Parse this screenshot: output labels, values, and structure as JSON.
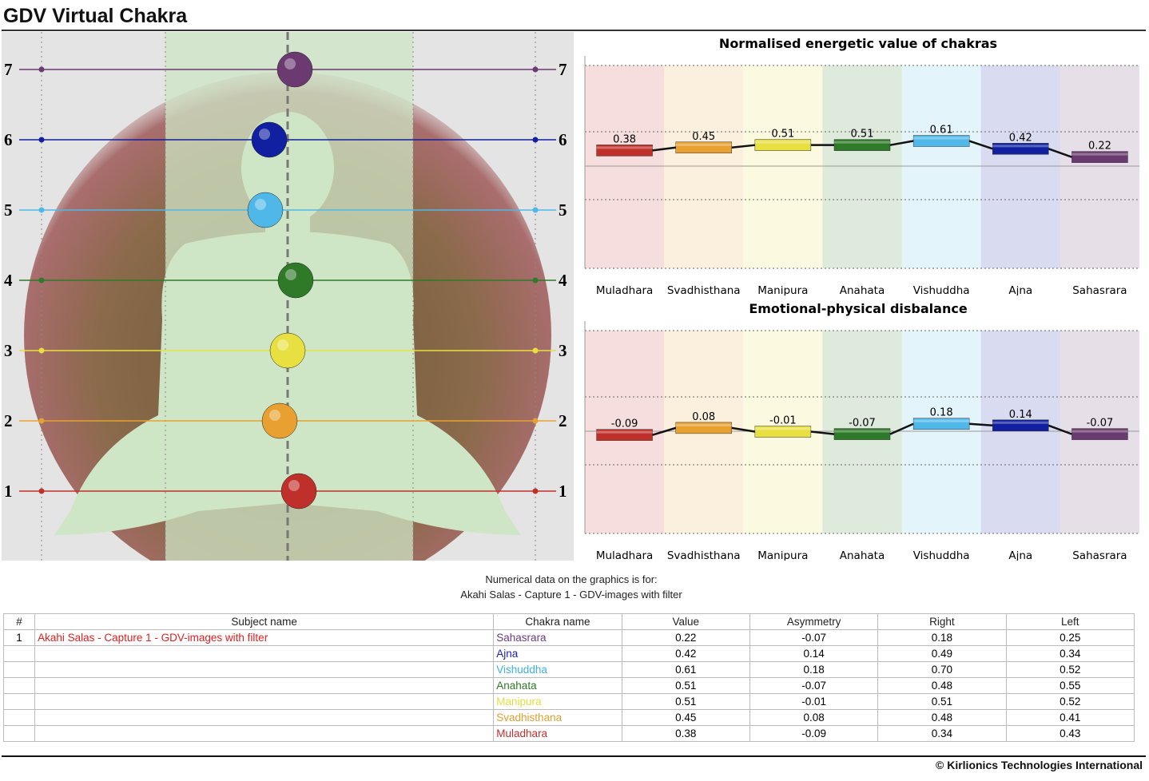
{
  "title": "GDV Virtual Chakra",
  "chakras": [
    {
      "level": 1,
      "name": "Muladhara",
      "color": "#c0302a"
    },
    {
      "level": 2,
      "name": "Svadhisthana",
      "color": "#e8a030"
    },
    {
      "level": 3,
      "name": "Manipura",
      "color": "#e8e040"
    },
    {
      "level": 4,
      "name": "Anahata",
      "color": "#2e7a28"
    },
    {
      "level": 5,
      "name": "Vishuddha",
      "color": "#50b8e8"
    },
    {
      "level": 6,
      "name": "Ajna",
      "color": "#1020a0"
    },
    {
      "level": 7,
      "name": "Sahasrara",
      "color": "#6a3a70"
    }
  ],
  "chart_data": [
    {
      "type": "bar",
      "title": "Normalised energetic value of chakras",
      "categories": [
        "Muladhara",
        "Svadhisthana",
        "Manipura",
        "Anahata",
        "Vishuddha",
        "Ajna",
        "Sahasrara"
      ],
      "values": [
        0.38,
        0.45,
        0.51,
        0.51,
        0.61,
        0.42,
        0.22
      ],
      "labels": [
        "0.38",
        "0.45",
        "0.51",
        "0.51",
        "0.61",
        "0.42",
        "0.22"
      ],
      "ylim": [
        -1.5,
        1.5
      ],
      "grid": true,
      "xlabel": "",
      "ylabel": ""
    },
    {
      "type": "bar",
      "title": "Emotional-physical disbalance",
      "categories": [
        "Muladhara",
        "Svadhisthana",
        "Manipura",
        "Anahata",
        "Vishuddha",
        "Ajna",
        "Sahasrara"
      ],
      "values": [
        -0.09,
        0.08,
        -0.01,
        -0.07,
        0.18,
        0.14,
        -0.07
      ],
      "labels": [
        "-0.09",
        "0.08",
        "-0.01",
        "-0.07",
        "0.18",
        "0.14",
        "-0.07"
      ],
      "ylim": [
        -1.5,
        1.5
      ],
      "grid": true,
      "xlabel": "",
      "ylabel": ""
    }
  ],
  "note": {
    "line1": "Numerical data on the graphics is for:",
    "line2": "Akahi Salas - Capture 1 - GDV-images with filter"
  },
  "table": {
    "headers": [
      "#",
      "Subject name",
      "Chakra name",
      "Value",
      "Asymmetry",
      "Right",
      "Left"
    ],
    "rows": [
      {
        "num": "1",
        "subject": "Akahi Salas - Capture 1 - GDV-images with filter",
        "chakra": "Sahasrara",
        "value": "0.22",
        "asym": "-0.07",
        "right": "0.18",
        "left": "0.25",
        "color": "#6a3a80"
      },
      {
        "num": "",
        "subject": "",
        "chakra": "Ajna",
        "value": "0.42",
        "asym": "0.14",
        "right": "0.49",
        "left": "0.34",
        "color": "#2020b0"
      },
      {
        "num": "",
        "subject": "",
        "chakra": "Vishuddha",
        "value": "0.61",
        "asym": "0.18",
        "right": "0.70",
        "left": "0.52",
        "color": "#40b0e0"
      },
      {
        "num": "",
        "subject": "",
        "chakra": "Anahata",
        "value": "0.51",
        "asym": "-0.07",
        "right": "0.48",
        "left": "0.55",
        "color": "#2e7a28"
      },
      {
        "num": "",
        "subject": "",
        "chakra": "Manipura",
        "value": "0.51",
        "asym": "-0.01",
        "right": "0.51",
        "left": "0.52",
        "color": "#e0e040"
      },
      {
        "num": "",
        "subject": "",
        "chakra": "Svadhisthana",
        "value": "0.45",
        "asym": "0.08",
        "right": "0.48",
        "left": "0.41",
        "color": "#e0a030"
      },
      {
        "num": "",
        "subject": "",
        "chakra": "Muladhara",
        "value": "0.38",
        "asym": "-0.09",
        "right": "0.34",
        "left": "0.43",
        "color": "#c03030"
      }
    ],
    "subject_color": "#e02020"
  },
  "copyright": "© Kirlionics Technologies International"
}
